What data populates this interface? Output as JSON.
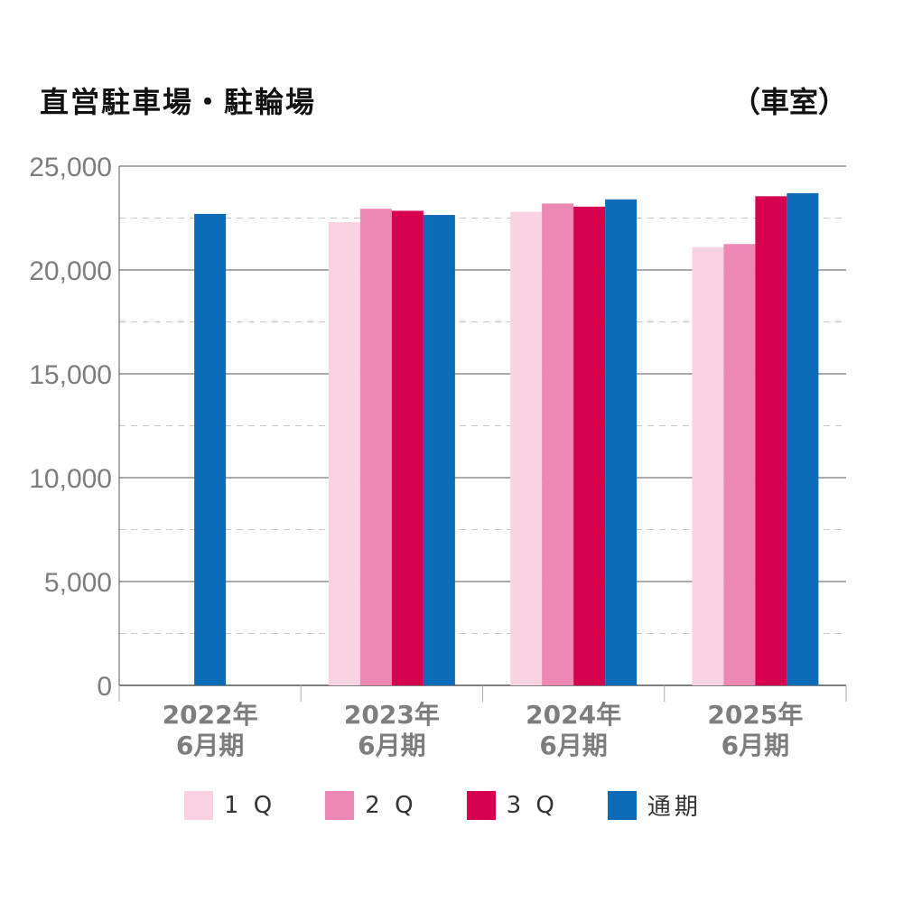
{
  "header": {
    "title": "直営駐車場・駐輪場",
    "unit": "（車室）"
  },
  "chart_data": {
    "type": "bar",
    "title": "直営駐車場・駐輪場",
    "unit": "（車室）",
    "categories": [
      [
        "2022年",
        "6月期"
      ],
      [
        "2023年",
        "6月期"
      ],
      [
        "2024年",
        "6月期"
      ],
      [
        "2025年",
        "6月期"
      ]
    ],
    "ylim": [
      0,
      25000
    ],
    "yticks": [
      "0",
      "5,000",
      "10,000",
      "15,000",
      "20,000",
      "25,000"
    ],
    "ytick_values": [
      0,
      5000,
      10000,
      15000,
      20000,
      25000
    ],
    "minor_grid_values": [
      2500,
      7500,
      12500,
      17500,
      22500
    ],
    "grid": true,
    "legend_position": "bottom",
    "series": [
      {
        "name": "1Q",
        "legend_label": "1 Q",
        "color": "#f9d2e3",
        "values": [
          null,
          22300,
          22800,
          21100
        ]
      },
      {
        "name": "2Q",
        "legend_label": "2 Q",
        "color": "#ed87b4",
        "values": [
          null,
          22950,
          23200,
          21250
        ]
      },
      {
        "name": "3Q",
        "legend_label": "3 Q",
        "color": "#d6004f",
        "values": [
          null,
          22850,
          23050,
          23550
        ]
      },
      {
        "name": "通期",
        "legend_label": "通期",
        "color": "#0d6bb8",
        "values": [
          22700,
          22650,
          23400,
          23700
        ]
      }
    ]
  }
}
